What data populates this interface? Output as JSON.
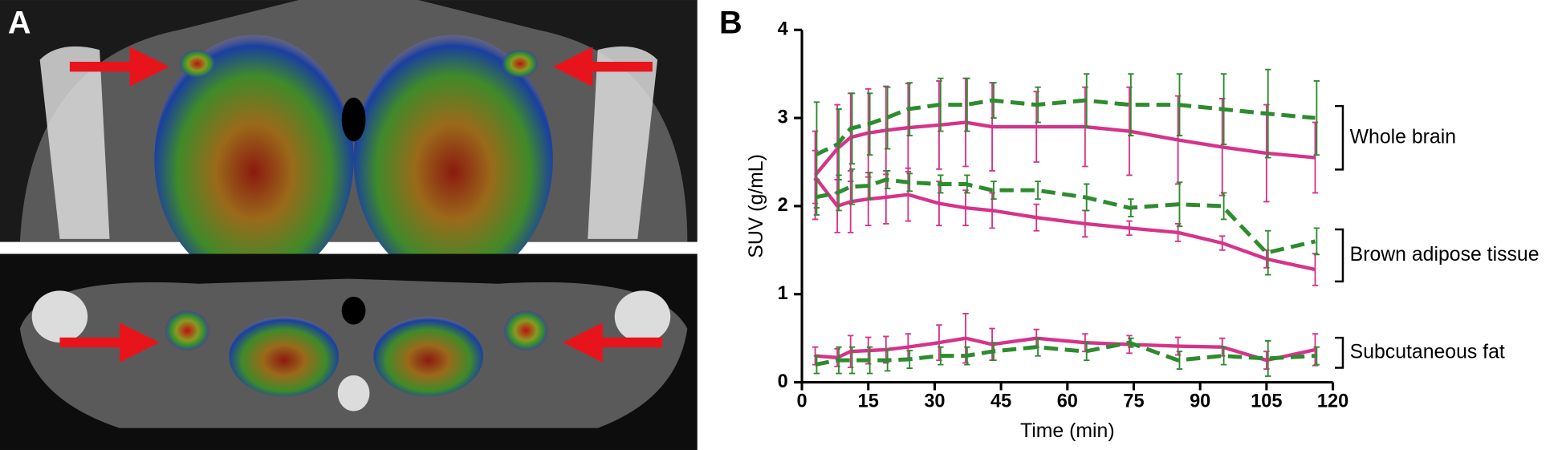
{
  "panel_a": {
    "label": "A"
  },
  "chart_data": {
    "type": "line",
    "panel_label": "B",
    "x_label": "Time (min)",
    "y_label": "SUV (g/mL)",
    "xlim": [
      0,
      120
    ],
    "xticks": [
      0,
      15,
      30,
      45,
      60,
      75,
      90,
      105,
      120
    ],
    "ylim": [
      0,
      4
    ],
    "yticks": [
      0,
      1,
      2,
      3,
      4
    ],
    "x": [
      3,
      8,
      11,
      15,
      19,
      24,
      31,
      37,
      43,
      53,
      64,
      74,
      85,
      95,
      105,
      116
    ],
    "groups": [
      {
        "label": "Whole brain",
        "series": [
          {
            "color": "#d6338a",
            "dashed": false,
            "values": [
              2.35,
              2.65,
              2.78,
              2.83,
              2.86,
              2.89,
              2.92,
              2.95,
              2.9,
              2.9,
              2.9,
              2.85,
              2.75,
              2.67,
              2.6,
              2.55
            ],
            "errors": [
              0.5,
              0.5,
              0.5,
              0.5,
              0.5,
              0.5,
              0.5,
              0.5,
              0.5,
              0.4,
              0.45,
              0.5,
              0.5,
              0.55,
              0.55,
              0.4
            ]
          },
          {
            "color": "#2e8b2e",
            "dashed": true,
            "values": [
              2.58,
              2.7,
              2.88,
              2.93,
              3.0,
              3.1,
              3.15,
              3.15,
              3.2,
              3.15,
              3.2,
              3.15,
              3.15,
              3.1,
              3.05,
              3.0
            ],
            "errors": [
              0.6,
              0.4,
              0.4,
              0.35,
              0.35,
              0.3,
              0.3,
              0.3,
              0.2,
              0.2,
              0.3,
              0.35,
              0.35,
              0.4,
              0.5,
              0.42
            ]
          }
        ]
      },
      {
        "label": "Brown adipose tissue",
        "series": [
          {
            "color": "#d6338a",
            "dashed": false,
            "values": [
              2.33,
              2.0,
              2.05,
              2.08,
              2.1,
              2.13,
              2.03,
              1.98,
              1.95,
              1.87,
              1.8,
              1.75,
              1.7,
              1.58,
              1.4,
              1.28
            ],
            "errors": [
              0.3,
              0.3,
              0.35,
              0.3,
              0.3,
              0.3,
              0.25,
              0.2,
              0.2,
              0.15,
              0.15,
              0.08,
              0.1,
              0.08,
              0.1,
              0.18
            ]
          },
          {
            "color": "#2e8b2e",
            "dashed": true,
            "values": [
              2.1,
              2.15,
              2.22,
              2.23,
              2.3,
              2.27,
              2.25,
              2.25,
              2.18,
              2.18,
              2.1,
              1.98,
              2.02,
              2.0,
              1.47,
              1.6
            ],
            "errors": [
              0.2,
              0.2,
              0.2,
              0.15,
              0.1,
              0.1,
              0.1,
              0.1,
              0.1,
              0.1,
              0.15,
              0.1,
              0.25,
              0.15,
              0.25,
              0.15
            ]
          }
        ]
      },
      {
        "label": "Subcutaneous fat",
        "series": [
          {
            "color": "#d6338a",
            "dashed": false,
            "values": [
              0.3,
              0.28,
              0.35,
              0.36,
              0.37,
              0.4,
              0.45,
              0.5,
              0.43,
              0.5,
              0.45,
              0.43,
              0.41,
              0.4,
              0.25,
              0.37
            ],
            "errors": [
              0.1,
              0.1,
              0.18,
              0.15,
              0.15,
              0.15,
              0.2,
              0.28,
              0.18,
              0.1,
              0.1,
              0.1,
              0.1,
              0.1,
              0.1,
              0.18
            ]
          },
          {
            "color": "#2e8b2e",
            "dashed": true,
            "values": [
              0.2,
              0.25,
              0.25,
              0.25,
              0.25,
              0.26,
              0.3,
              0.3,
              0.35,
              0.4,
              0.35,
              0.45,
              0.25,
              0.3,
              0.27,
              0.3
            ],
            "errors": [
              0.1,
              0.15,
              0.15,
              0.15,
              0.12,
              0.1,
              0.1,
              0.1,
              0.1,
              0.1,
              0.1,
              0.05,
              0.1,
              0.1,
              0.2,
              0.1
            ]
          }
        ]
      }
    ]
  }
}
